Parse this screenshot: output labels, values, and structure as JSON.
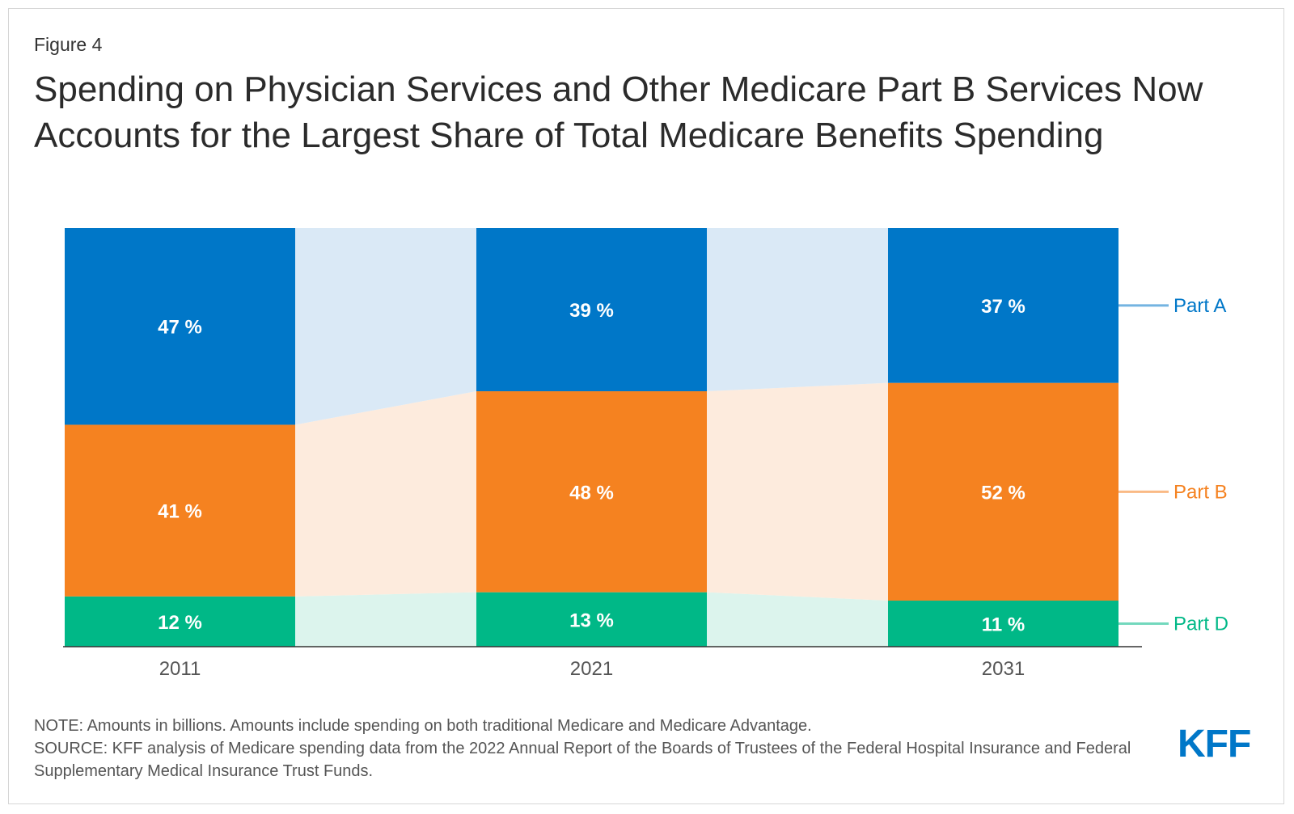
{
  "figure_label": "Figure 4",
  "title": "Spending on Physician Services and Other Medicare Part B Services Now Accounts for the Largest Share of Total Medicare Benefits Spending",
  "note": "NOTE: Amounts in billions. Amounts include spending on both traditional Medicare and Medicare Advantage.",
  "source": "SOURCE: KFF analysis of Medicare spending data from the 2022 Annual Report of the Boards of Trustees of the Federal Hospital Insurance and Federal Supplementary Medical Insurance Trust Funds.",
  "logo_text": "KFF",
  "colors": {
    "brand": "#0077c8",
    "text": "#333333"
  },
  "chart_data": {
    "type": "bar",
    "stacked": true,
    "normalized": true,
    "categories": [
      "2011",
      "2021",
      "2031"
    ],
    "ylim": [
      0,
      100
    ],
    "grid": false,
    "legend_placement": "right, line labels",
    "value_suffix": " %",
    "series": [
      {
        "name": "Part D",
        "values": [
          12,
          13,
          11
        ],
        "color": "#00b887",
        "light_color": "#dcf4ed",
        "label_color": "#00b887"
      },
      {
        "name": "Part B",
        "values": [
          41,
          48,
          52
        ],
        "color": "#f58220",
        "light_color": "#fdebdd",
        "label_color": "#f58220"
      },
      {
        "name": "Part A",
        "values": [
          47,
          39,
          37
        ],
        "color": "#0077c8",
        "light_color": "#dae9f6",
        "label_color": "#0077c8"
      }
    ]
  }
}
